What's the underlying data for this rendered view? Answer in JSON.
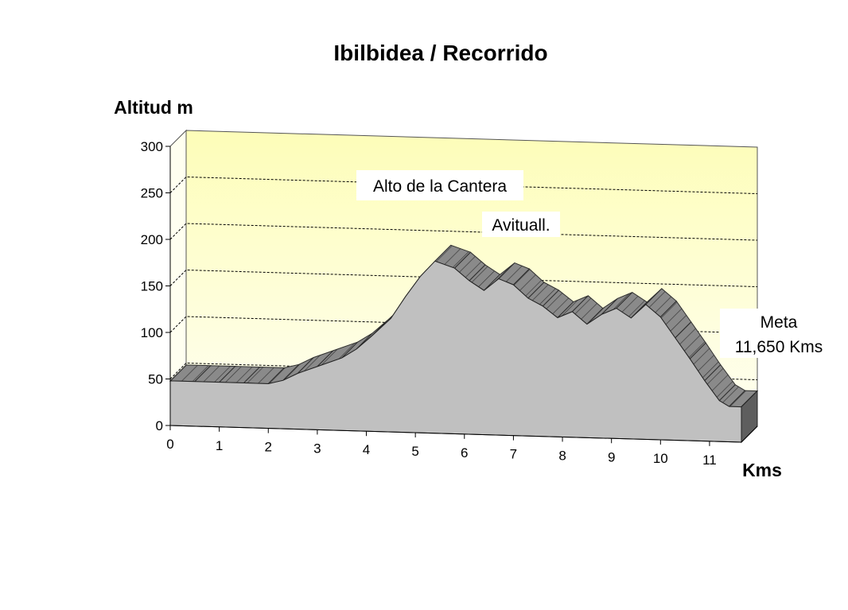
{
  "chart_data": {
    "type": "area",
    "title": "Ibilbidea / Recorrido",
    "ylabel": "Altitud m",
    "xlabel": "Kms",
    "xlim": [
      0,
      11.65
    ],
    "ylim": [
      0,
      300
    ],
    "yticks": [
      0,
      50,
      100,
      150,
      200,
      250,
      300
    ],
    "xticks": [
      0,
      1,
      2,
      3,
      4,
      5,
      6,
      7,
      8,
      9,
      10,
      11
    ],
    "grid": true,
    "three_d": true,
    "x": [
      0,
      0.5,
      1,
      1.5,
      2,
      2.3,
      2.6,
      3,
      3.5,
      3.8,
      4.1,
      4.5,
      4.8,
      5.1,
      5.4,
      5.8,
      6.1,
      6.4,
      6.7,
      7.0,
      7.3,
      7.6,
      7.9,
      8.2,
      8.5,
      8.8,
      9.1,
      9.4,
      9.7,
      10.0,
      10.3,
      10.6,
      10.9,
      11.2,
      11.4,
      11.65
    ],
    "y": [
      48,
      48,
      48,
      48,
      48,
      52,
      60,
      68,
      78,
      88,
      102,
      122,
      146,
      168,
      185,
      178,
      165,
      155,
      168,
      162,
      148,
      140,
      128,
      135,
      122,
      133,
      140,
      130,
      145,
      132,
      110,
      88,
      65,
      44,
      38,
      38
    ],
    "annotations": [
      {
        "text": "Alto de la Cantera",
        "x": 5.4
      },
      {
        "text": "Avituall.",
        "x": 6.6
      },
      {
        "text": "Meta",
        "x": 11.65
      },
      {
        "text": "11,650 Kms",
        "x": 11.65
      }
    ]
  }
}
